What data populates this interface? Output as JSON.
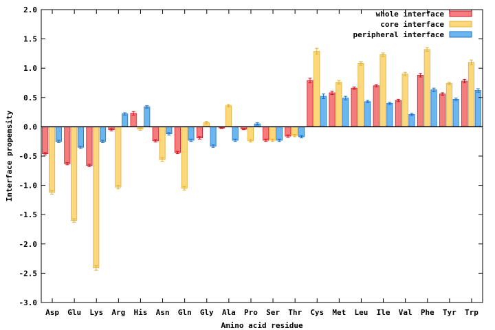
{
  "chart_data": {
    "type": "bar",
    "xlabel": "Amino acid residue",
    "ylabel": "Interface propensity",
    "ylim": [
      -3.0,
      2.0
    ],
    "yticks": [
      "-3.0",
      "-2.5",
      "-2.0",
      "-1.5",
      "-1.0",
      "-0.5",
      "0.0",
      "0.5",
      "1.0",
      "1.5",
      "2.0"
    ],
    "legend_position": "top-right",
    "grid": false,
    "categories": [
      "Asp",
      "Glu",
      "Lys",
      "Arg",
      "His",
      "Asn",
      "Gln",
      "Gly",
      "Ala",
      "Pro",
      "Ser",
      "Thr",
      "Cys",
      "Met",
      "Leu",
      "Ile",
      "Val",
      "Phe",
      "Tyr",
      "Trp"
    ],
    "series": [
      {
        "name": "whole interface",
        "fill": "#f47c7c",
        "stroke": "#d01020",
        "values": [
          -0.46,
          -0.63,
          -0.66,
          -0.05,
          0.23,
          -0.24,
          -0.44,
          -0.19,
          -0.02,
          -0.04,
          -0.23,
          -0.16,
          0.79,
          0.58,
          0.66,
          0.7,
          0.45,
          0.88,
          0.56,
          0.78
        ],
        "errors": [
          0.02,
          0.02,
          0.02,
          0.02,
          0.03,
          0.02,
          0.02,
          0.02,
          0.01,
          0.01,
          0.02,
          0.02,
          0.04,
          0.03,
          0.02,
          0.02,
          0.02,
          0.03,
          0.02,
          0.03
        ]
      },
      {
        "name": "core interface",
        "fill": "#fcd77c",
        "stroke": "#e0b030",
        "values": [
          -1.12,
          -1.6,
          -2.41,
          -1.03,
          -0.04,
          -0.56,
          -1.05,
          0.07,
          0.36,
          -0.24,
          -0.23,
          -0.15,
          1.29,
          0.76,
          1.08,
          1.23,
          0.9,
          1.32,
          0.74,
          1.1
        ],
        "errors": [
          0.03,
          0.03,
          0.04,
          0.03,
          0.02,
          0.03,
          0.03,
          0.02,
          0.02,
          0.02,
          0.02,
          0.02,
          0.05,
          0.03,
          0.03,
          0.03,
          0.03,
          0.03,
          0.02,
          0.04
        ]
      },
      {
        "name": "peripheral interface",
        "fill": "#6cb6f0",
        "stroke": "#1a70c8",
        "values": [
          -0.25,
          -0.35,
          -0.25,
          0.22,
          0.34,
          -0.12,
          -0.23,
          -0.33,
          -0.23,
          0.05,
          -0.23,
          -0.17,
          0.52,
          0.49,
          0.43,
          0.4,
          0.21,
          0.63,
          0.47,
          0.62
        ],
        "errors": [
          0.02,
          0.02,
          0.02,
          0.02,
          0.02,
          0.02,
          0.02,
          0.02,
          0.02,
          0.02,
          0.02,
          0.02,
          0.04,
          0.03,
          0.02,
          0.02,
          0.02,
          0.03,
          0.02,
          0.03
        ]
      }
    ]
  }
}
